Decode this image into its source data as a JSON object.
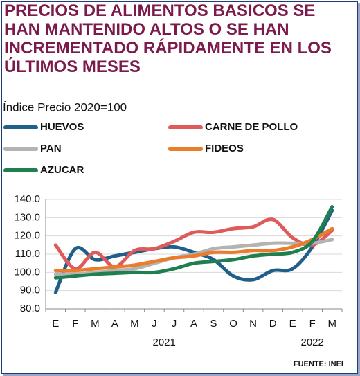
{
  "chart_data": {
    "type": "line",
    "title": "PRECIOS DE ALIMENTOS BASICOS SE HAN MANTENIDO ALTOS O SE HAN INCREMENTADO RÁPIDAMENTE EN LOS ÚLTIMOS MESES",
    "subtitle": "Índice Precio 2020=100",
    "source": "FUENTE: INEI",
    "categories": [
      "E",
      "F",
      "M",
      "A",
      "M",
      "J",
      "J",
      "A",
      "S",
      "O",
      "N",
      "D",
      "E",
      "F",
      "M"
    ],
    "year_labels": [
      "2021",
      "2022"
    ],
    "series": [
      {
        "name": "HUEVOS",
        "color": "#215f8b",
        "values": [
          89,
          113,
          107,
          109,
          111,
          113,
          114,
          111,
          107,
          98,
          96,
          101,
          102,
          114,
          134
        ]
      },
      {
        "name": "CARNE DE POLLO",
        "color": "#df5b5b",
        "values": [
          115,
          102,
          111,
          103,
          112,
          113,
          117,
          122,
          122,
          124,
          125,
          129,
          119,
          115,
          123
        ]
      },
      {
        "name": "PAN",
        "color": "#b3b3b3",
        "values": [
          99,
          99,
          100,
          101,
          102,
          105,
          108,
          110,
          113,
          114,
          115,
          116,
          116,
          116,
          118
        ]
      },
      {
        "name": "FIDEOS",
        "color": "#ea7d2c",
        "values": [
          101,
          101,
          102,
          103,
          104,
          106,
          108,
          109,
          111,
          111,
          112,
          112,
          114,
          118,
          124
        ]
      },
      {
        "name": "AZUCAR",
        "color": "#1f7f4f",
        "values": [
          97,
          98,
          99,
          99.5,
          100,
          100,
          102,
          105,
          106,
          107,
          109,
          110,
          111,
          117,
          136
        ]
      }
    ],
    "ylim": [
      80,
      140
    ],
    "yticks": [
      {
        "value": 80,
        "label": "80.0"
      },
      {
        "value": 90,
        "label": "90.0"
      },
      {
        "value": 100,
        "label": "100.0"
      },
      {
        "value": 110,
        "label": "110.0"
      },
      {
        "value": 120,
        "label": "120.0"
      },
      {
        "value": 130,
        "label": "130.0"
      },
      {
        "value": 140,
        "label": "140.0"
      }
    ],
    "grid": true
  }
}
